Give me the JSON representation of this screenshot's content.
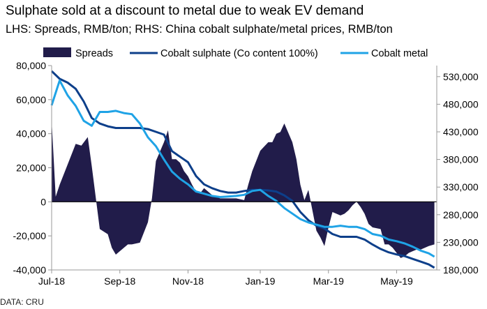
{
  "header": {
    "title": "Sulphate sold at a discount to metal due to weak EV demand",
    "subtitle": "LHS: Spreads, RMB/ton; RHS: China cobalt sulphate/metal prices, RMB/ton"
  },
  "footer": {
    "source": "DATA: CRU"
  },
  "colors": {
    "spreads": "#211c4a",
    "sulphate": "#0d3f8a",
    "metal": "#1fa3e6",
    "zero_line": "#000000",
    "axis": "#999999"
  },
  "chart_data": {
    "type": "area",
    "x_tick_labels": [
      "Jul-18",
      "Sep-18",
      "Nov-18",
      "Jan-19",
      "Mar-19",
      "May-19"
    ],
    "x_range_weeks": [
      0,
      48
    ],
    "x_tick_weeks": [
      0,
      8.5,
      17,
      26,
      34.5,
      43
    ],
    "y_left": {
      "ylim": [
        -40000,
        80000
      ],
      "ticks": [
        -40000,
        -20000,
        0,
        20000,
        40000,
        60000,
        80000
      ],
      "tick_labels": [
        "-40,000",
        "-20,000",
        "0",
        "20,000",
        "40,000",
        "60,000",
        "80,000"
      ]
    },
    "y_right": {
      "ylim": [
        180000,
        550000
      ],
      "ticks": [
        180000,
        230000,
        280000,
        330000,
        380000,
        430000,
        480000,
        530000
      ],
      "tick_labels": [
        "180,000",
        "230,000",
        "280,000",
        "330,000",
        "380,000",
        "430,000",
        "480,000",
        "530,000"
      ]
    },
    "legend": {
      "placement": "top",
      "entries": [
        "Spreads",
        "Cobalt sulphate (Co content 100%)",
        "Cobalt metal"
      ]
    },
    "series": [
      {
        "name": "Spreads",
        "axis": "left",
        "kind": "area",
        "x": [
          0,
          0.5,
          1,
          2,
          3,
          3.7,
          4.5,
          5,
          6,
          7,
          7.5,
          8,
          9,
          9.5,
          10,
          11,
          12,
          12.5,
          13,
          14,
          14.5,
          15,
          15.5,
          16,
          16.5,
          17,
          17.5,
          18,
          18.5,
          19,
          20,
          21,
          22,
          23,
          24,
          24.5,
          25,
          26,
          27,
          27.5,
          28,
          28.5,
          29,
          30,
          30.5,
          31,
          31.5,
          32,
          33,
          33.5,
          34,
          34.5,
          35,
          36,
          36.5,
          37,
          37.5,
          38,
          38.5,
          39,
          39.5,
          40,
          41,
          41.5,
          42,
          42.5,
          43,
          43.5,
          44,
          44.5,
          45,
          45.5,
          46,
          46.5,
          47,
          47.7
        ],
        "values": [
          48000,
          3000,
          10000,
          22000,
          34000,
          33000,
          38000,
          21000,
          -16000,
          -19000,
          -27000,
          -31000,
          -27000,
          -25000,
          -25000,
          -24000,
          -12000,
          2000,
          24000,
          35000,
          42000,
          25000,
          25000,
          23000,
          18000,
          15000,
          10000,
          6000,
          5000,
          8000,
          4000,
          2000,
          2000,
          2000,
          1000,
          10000,
          18000,
          30000,
          35000,
          35000,
          40000,
          41000,
          46000,
          35000,
          25000,
          10000,
          1000,
          7000,
          -17000,
          -21000,
          -26000,
          -15000,
          -6000,
          -8000,
          -7000,
          -5000,
          -2000,
          0,
          -3000,
          -7000,
          -13000,
          -15000,
          -16000,
          -25000,
          -25000,
          -27000,
          -30000,
          -33000,
          -32000,
          -30000,
          -29000,
          -28000,
          -28000,
          -27000,
          -26000,
          -25000
        ]
      },
      {
        "name": "Cobalt sulphate (Co content 100%)",
        "axis": "right",
        "kind": "line",
        "x": [
          0,
          1,
          2,
          3,
          4,
          5,
          6,
          7,
          8,
          9,
          10,
          11,
          12,
          13,
          14,
          15,
          16,
          17,
          18,
          19,
          20,
          21,
          22,
          23,
          24,
          25,
          26,
          27,
          28,
          29,
          30,
          31,
          32,
          33,
          34,
          35,
          36,
          37,
          38,
          39,
          40,
          41,
          42,
          43,
          44,
          45,
          46,
          47,
          47.7
        ],
        "values": [
          540000,
          526000,
          519000,
          508000,
          485000,
          455000,
          445000,
          440000,
          437000,
          437000,
          437000,
          437000,
          435000,
          430000,
          425000,
          395000,
          385000,
          375000,
          350000,
          335000,
          328000,
          323000,
          320000,
          320000,
          323000,
          325000,
          325000,
          324000,
          322000,
          315000,
          305000,
          285000,
          270000,
          260000,
          255000,
          245000,
          240000,
          240000,
          240000,
          235000,
          226000,
          218000,
          212000,
          208000,
          205000,
          200000,
          195000,
          190000,
          184000
        ]
      },
      {
        "name": "Cobalt metal",
        "axis": "right",
        "kind": "line",
        "x": [
          0,
          1,
          2,
          3,
          4,
          5,
          6,
          7,
          8,
          9,
          10,
          11,
          12,
          13,
          14,
          15,
          16,
          17,
          18,
          19,
          20,
          21,
          22,
          23,
          24,
          25,
          26,
          27,
          28,
          29,
          30,
          31,
          32,
          33,
          34,
          35,
          36,
          37,
          38,
          39,
          40,
          41,
          42,
          43,
          44,
          45,
          46,
          47,
          47.7
        ],
        "values": [
          478000,
          523000,
          496000,
          477000,
          450000,
          441000,
          466000,
          466000,
          468000,
          464000,
          462000,
          445000,
          420000,
          404000,
          380000,
          358000,
          345000,
          335000,
          322000,
          318000,
          314000,
          312000,
          313000,
          314000,
          316000,
          323000,
          325000,
          314000,
          305000,
          292000,
          282000,
          272000,
          266000,
          262000,
          258000,
          258000,
          260000,
          258000,
          258000,
          254000,
          245000,
          242000,
          235000,
          232000,
          228000,
          222000,
          215000,
          210000,
          204000
        ]
      }
    ]
  }
}
